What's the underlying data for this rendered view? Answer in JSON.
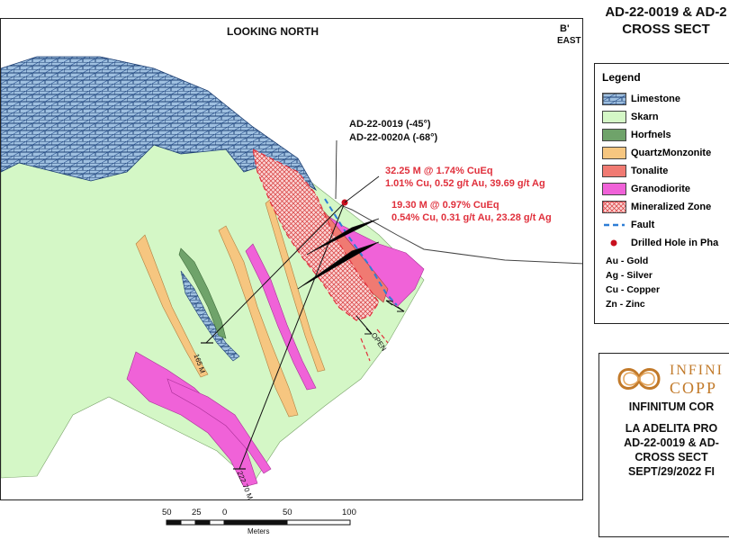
{
  "view_title": "LOOKING NORTH",
  "section_end": {
    "label": "B'",
    "direction": "EAST"
  },
  "figure_title": [
    "AD-22-0019 & AD-2",
    "CROSS SECT"
  ],
  "drillholes": {
    "label_1": "AD-22-0019 (-45°)",
    "label_2": "AD-22-0020A (-68°)",
    "depth_1": "165 M",
    "depth_2": "222.70 M"
  },
  "intercepts": [
    {
      "headline": "32.25 M @  1.74% CuEq",
      "detail": "1.01% Cu, 0.52 g/t Au, 39.69 g/t Ag"
    },
    {
      "headline": "19.30 M @  0.97% CuEq",
      "detail": "0.54% Cu, 0.31 g/t Au, 23.28 g/t Ag"
    }
  ],
  "open_label": "OPEN",
  "legend": {
    "title": "Legend",
    "items": [
      {
        "label": "Limestone",
        "color": "#4f86c6"
      },
      {
        "label": "Skarn",
        "color": "#d4f7c6"
      },
      {
        "label": "Horfnels",
        "color": "#6fa36a"
      },
      {
        "label": "QuartzMonzonite",
        "color": "#f6c680"
      },
      {
        "label": "Tonalite",
        "color": "#f07a72"
      },
      {
        "label": "Granodiorite",
        "color": "#f062d8"
      },
      {
        "label": "Mineralized Zone",
        "color": "#e0303c"
      },
      {
        "label": "Fault",
        "color": "#2d7ed6"
      },
      {
        "label": "Drilled Hole in Pha",
        "color": "#c8101e"
      }
    ],
    "abbreviations": [
      "Au - Gold",
      "Ag - Silver",
      "Cu - Copper",
      "Zn - Zinc"
    ]
  },
  "company": {
    "logo_text_1": "INFINI",
    "logo_text_2": "COPP",
    "name": "INFINITUM COR",
    "project": "LA ADELITA PRO",
    "holes": "AD-22-0019 & AD-",
    "section": "CROSS SECT",
    "date_fig": "SEPT/29/2022      FI"
  },
  "scale_bar": {
    "ticks": [
      "50",
      "25",
      "0",
      "50",
      "100"
    ],
    "unit": "Meters"
  }
}
